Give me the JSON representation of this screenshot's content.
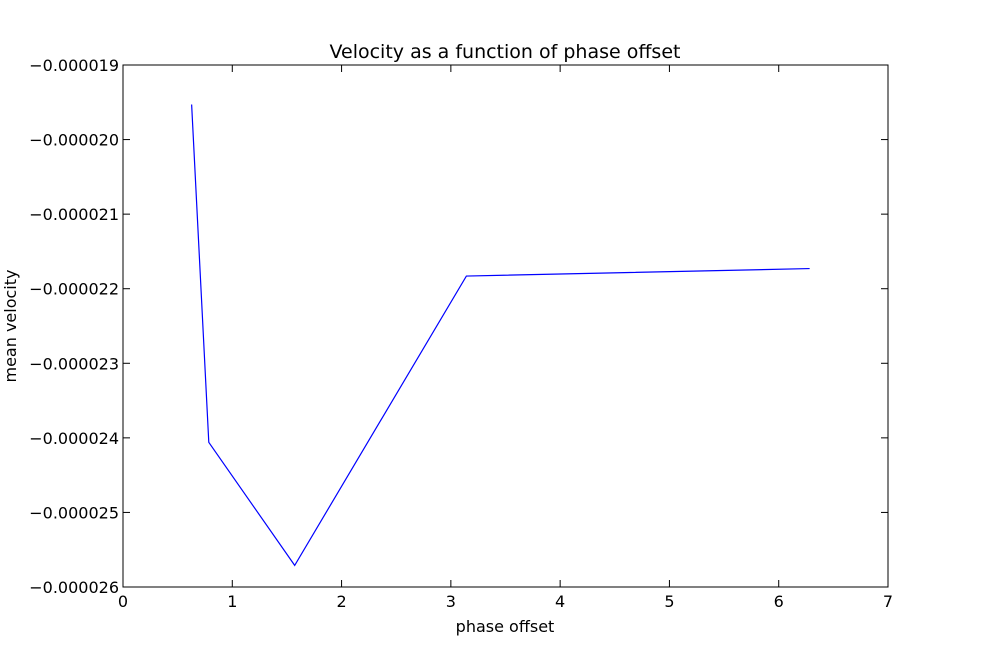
{
  "chart_data": {
    "type": "line",
    "title": "Velocity as a function of phase offset",
    "xlabel": "phase offset",
    "ylabel": "mean velocity",
    "xlim": [
      0,
      7
    ],
    "ylim": [
      -2.6e-05,
      -1.9e-05
    ],
    "xticks": [
      0,
      1,
      2,
      3,
      4,
      5,
      6,
      7
    ],
    "xtick_labels": [
      "0",
      "1",
      "2",
      "3",
      "4",
      "5",
      "6",
      "7"
    ],
    "yticks": [
      -1.9e-05,
      -2e-05,
      -2.1e-05,
      -2.2e-05,
      -2.3e-05,
      -2.4e-05,
      -2.5e-05,
      -2.6e-05
    ],
    "ytick_labels": [
      "−0.000019",
      "−0.000020",
      "−0.000021",
      "−0.000022",
      "−0.000023",
      "−0.000024",
      "−0.000025",
      "−0.000026"
    ],
    "grid": false,
    "line_color": "#0000ff",
    "series": [
      {
        "x": [
          0.628,
          0.785,
          1.571,
          3.142,
          6.283
        ],
        "y": [
          -1.953e-05,
          -2.406e-05,
          -2.571e-05,
          -2.183e-05,
          -2.173e-05
        ]
      }
    ]
  }
}
